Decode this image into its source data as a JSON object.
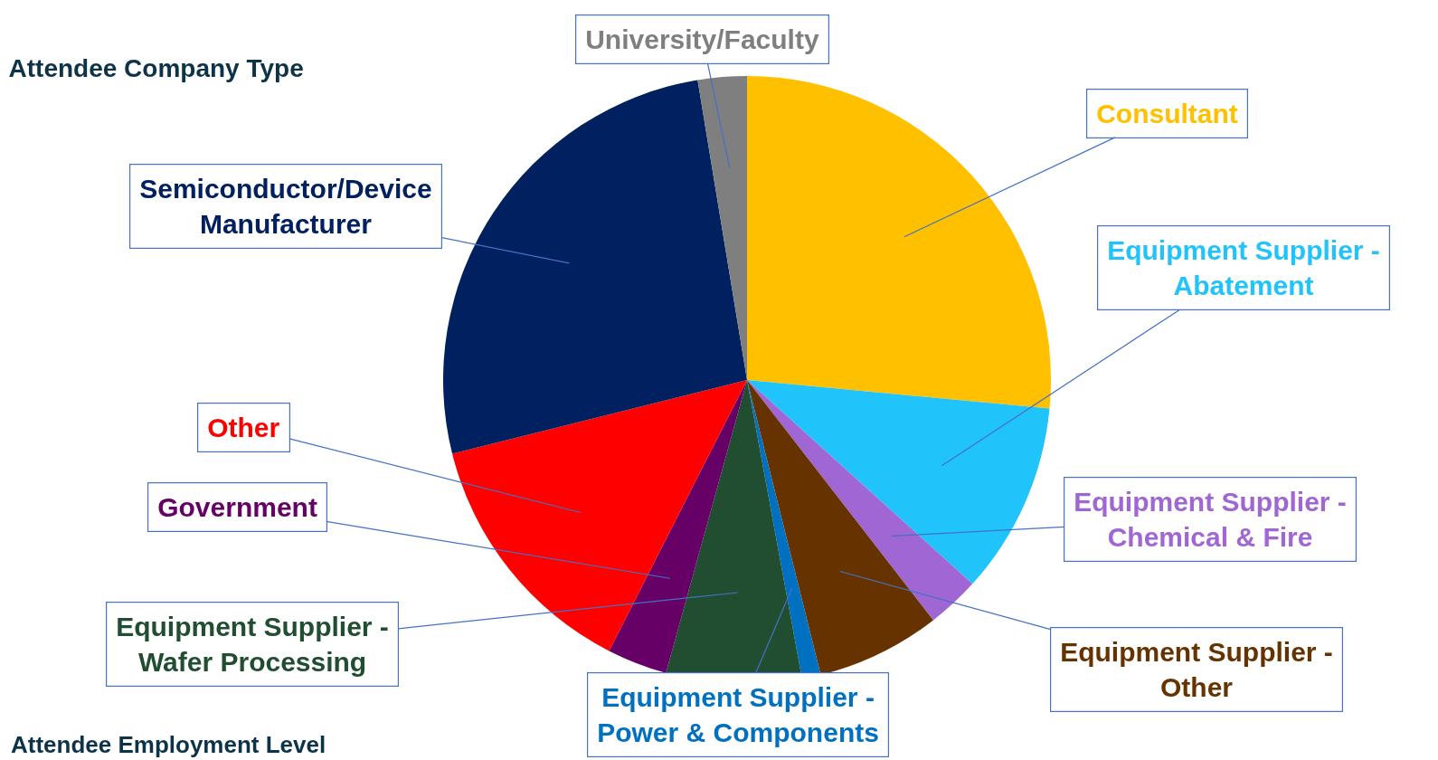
{
  "chart_data": {
    "type": "pie",
    "title": "Attendee Company Type",
    "categories": [
      "Consultant",
      "Equipment Supplier - Abatement",
      "Equipment Supplier - Chemical & Fire",
      "Equipment Supplier - Other",
      "Equipment Supplier - Power & Components",
      "Equipment Supplier - Wafer Processing",
      "Government",
      "Other",
      "Semiconductor/Device Manufacturer",
      "University/Faculty"
    ],
    "values": [
      26.5,
      10.2,
      2.8,
      6.6,
      1.0,
      7.2,
      3.2,
      13.6,
      26.3,
      2.6
    ],
    "colors": [
      "#ffc000",
      "#21c3fb",
      "#a066d3",
      "#663300",
      "#0070c0",
      "#214d31",
      "#660066",
      "#ff0000",
      "#002060",
      "#7f7f7f"
    ],
    "annotations": [
      "Attendee Employment Level"
    ]
  }
}
